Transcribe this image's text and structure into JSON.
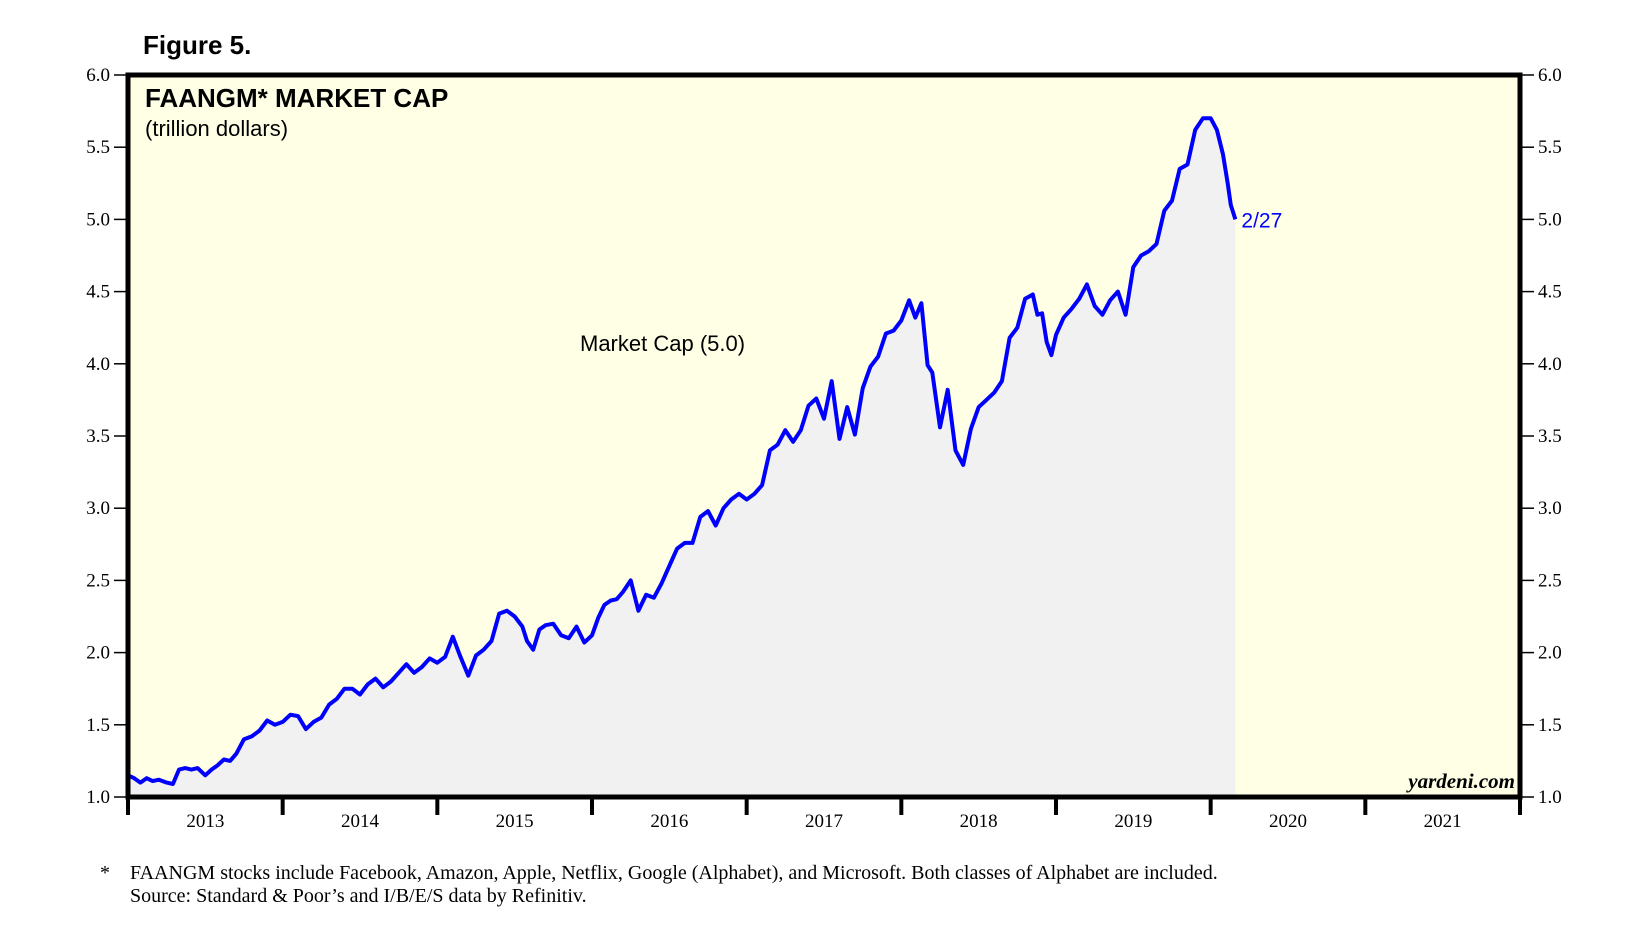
{
  "figure_label": "Figure 5.",
  "footnote": {
    "marker": "*",
    "line1": "FAANGM stocks include Facebook, Amazon, Apple, Netflix, Google (Alphabet), and Microsoft. Both classes of Alphabet are included.",
    "line2": "Source: Standard & Poor’s and I/B/E/S data by Refinitiv."
  },
  "chart_data": {
    "type": "area",
    "title": "FAANGM* MARKET CAP",
    "subtitle": "(trillion dollars)",
    "xlabel": "",
    "ylabel": "trillion dollars",
    "xlim": [
      2013.0,
      2022.0
    ],
    "ylim": [
      1.0,
      6.0
    ],
    "y_ticks": [
      1.0,
      1.5,
      2.0,
      2.5,
      3.0,
      3.5,
      4.0,
      4.5,
      5.0,
      5.5,
      6.0
    ],
    "y_tick_labels": [
      "1.0",
      "1.5",
      "2.0",
      "2.5",
      "3.0",
      "3.5",
      "4.0",
      "4.5",
      "5.0",
      "5.5",
      "6.0"
    ],
    "x_year_labels": [
      "2013",
      "2014",
      "2015",
      "2016",
      "2017",
      "2018",
      "2019",
      "2020",
      "2021"
    ],
    "grid": false,
    "background_color": "#ffffe6",
    "fill_color": "#f1f1f2",
    "line_color": "#0000ff",
    "series": [
      {
        "name": "Market Cap (5.0)",
        "end_label": "2/27",
        "x": [
          2013.0,
          2013.04,
          2013.08,
          2013.12,
          2013.16,
          2013.2,
          2013.25,
          2013.29,
          2013.33,
          2013.37,
          2013.41,
          2013.45,
          2013.5,
          2013.54,
          2013.58,
          2013.62,
          2013.66,
          2013.7,
          2013.75,
          2013.8,
          2013.85,
          2013.9,
          2013.95,
          2014.0,
          2014.05,
          2014.1,
          2014.15,
          2014.2,
          2014.25,
          2014.3,
          2014.35,
          2014.4,
          2014.45,
          2014.5,
          2014.55,
          2014.6,
          2014.65,
          2014.7,
          2014.75,
          2014.8,
          2014.85,
          2014.9,
          2014.95,
          2015.0,
          2015.05,
          2015.1,
          2015.15,
          2015.2,
          2015.25,
          2015.3,
          2015.35,
          2015.4,
          2015.45,
          2015.5,
          2015.55,
          2015.58,
          2015.62,
          2015.66,
          2015.7,
          2015.75,
          2015.8,
          2015.85,
          2015.9,
          2015.95,
          2016.0,
          2016.04,
          2016.08,
          2016.12,
          2016.16,
          2016.2,
          2016.25,
          2016.3,
          2016.35,
          2016.4,
          2016.45,
          2016.5,
          2016.55,
          2016.6,
          2016.65,
          2016.7,
          2016.75,
          2016.8,
          2016.85,
          2016.9,
          2016.95,
          2017.0,
          2017.05,
          2017.1,
          2017.15,
          2017.2,
          2017.25,
          2017.3,
          2017.35,
          2017.4,
          2017.45,
          2017.5,
          2017.55,
          2017.6,
          2017.65,
          2017.7,
          2017.75,
          2017.8,
          2017.85,
          2017.9,
          2017.95,
          2018.0,
          2018.05,
          2018.09,
          2018.13,
          2018.17,
          2018.2,
          2018.25,
          2018.3,
          2018.35,
          2018.4,
          2018.45,
          2018.5,
          2018.55,
          2018.6,
          2018.65,
          2018.7,
          2018.75,
          2018.8,
          2018.85,
          2018.88,
          2018.91,
          2018.94,
          2018.97,
          2019.0,
          2019.05,
          2019.1,
          2019.15,
          2019.2,
          2019.25,
          2019.3,
          2019.35,
          2019.4,
          2019.45,
          2019.5,
          2019.55,
          2019.6,
          2019.65,
          2019.7,
          2019.75,
          2019.8,
          2019.85,
          2019.9,
          2019.95,
          2020.0,
          2020.04,
          2020.08,
          2020.11,
          2020.13,
          2020.16
        ],
        "values": [
          1.15,
          1.13,
          1.1,
          1.13,
          1.11,
          1.12,
          1.1,
          1.09,
          1.19,
          1.2,
          1.19,
          1.2,
          1.15,
          1.19,
          1.22,
          1.26,
          1.25,
          1.3,
          1.4,
          1.42,
          1.46,
          1.53,
          1.5,
          1.52,
          1.57,
          1.56,
          1.47,
          1.52,
          1.55,
          1.64,
          1.68,
          1.75,
          1.75,
          1.71,
          1.78,
          1.82,
          1.76,
          1.8,
          1.86,
          1.92,
          1.86,
          1.9,
          1.96,
          1.93,
          1.97,
          2.11,
          1.97,
          1.84,
          1.98,
          2.02,
          2.08,
          2.27,
          2.29,
          2.25,
          2.18,
          2.08,
          2.02,
          2.16,
          2.19,
          2.2,
          2.12,
          2.1,
          2.18,
          2.07,
          2.12,
          2.24,
          2.33,
          2.36,
          2.37,
          2.42,
          2.5,
          2.29,
          2.4,
          2.38,
          2.48,
          2.6,
          2.72,
          2.76,
          2.76,
          2.94,
          2.98,
          2.88,
          3.0,
          3.06,
          3.1,
          3.06,
          3.1,
          3.16,
          3.4,
          3.44,
          3.54,
          3.46,
          3.54,
          3.71,
          3.76,
          3.62,
          3.88,
          3.48,
          3.7,
          3.51,
          3.83,
          3.98,
          4.05,
          4.21,
          4.23,
          4.3,
          4.44,
          4.32,
          4.42,
          3.99,
          3.94,
          3.56,
          3.82,
          3.4,
          3.3,
          3.55,
          3.7,
          3.75,
          3.8,
          3.88,
          4.18,
          4.25,
          4.45,
          4.48,
          4.34,
          4.35,
          4.15,
          4.06,
          4.2,
          4.32,
          4.38,
          4.45,
          4.55,
          4.4,
          4.34,
          4.44,
          4.5,
          4.34,
          4.67,
          4.75,
          4.78,
          4.83,
          5.06,
          5.13,
          5.35,
          5.38,
          5.62,
          5.7,
          5.7,
          5.62,
          5.45,
          5.25,
          5.1,
          5.0
        ]
      }
    ],
    "annotations": [
      "Market Cap (5.0)",
      "2/27",
      "yardeni.com"
    ]
  }
}
